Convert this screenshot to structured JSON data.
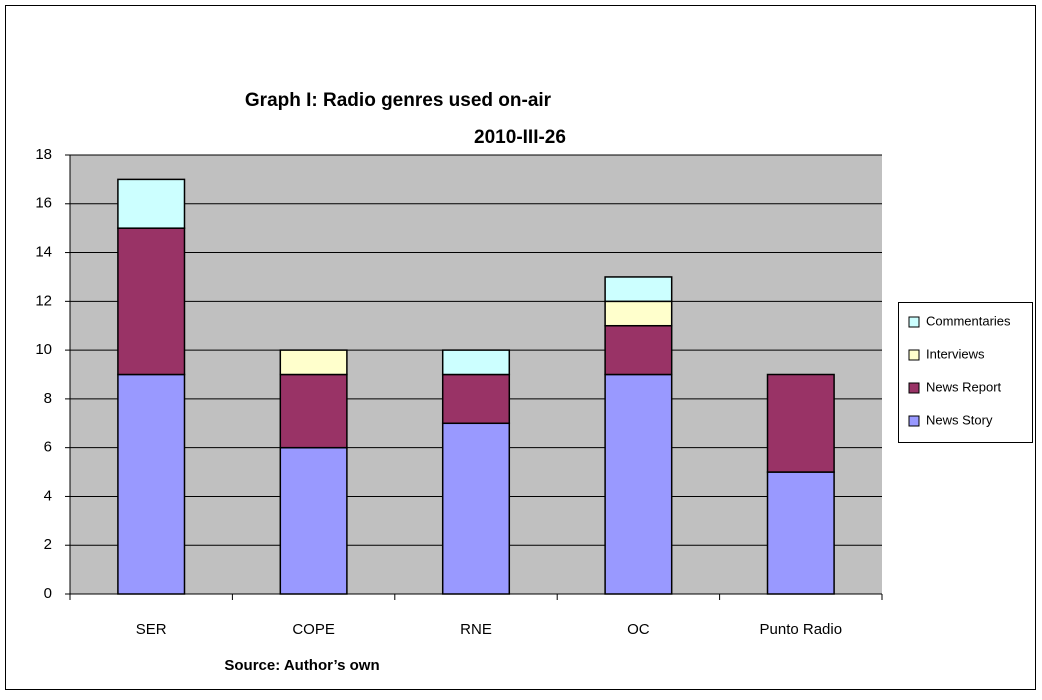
{
  "chart_data": {
    "type": "stacked-bar",
    "title": "Graph I: Radio genres used on-air",
    "subtitle": "2010-III-26",
    "source": "Source: Author’s own",
    "categories": [
      "SER",
      "COPE",
      "RNE",
      "OC",
      "Punto Radio"
    ],
    "series": [
      {
        "name": "News Story",
        "color": "#9999ff",
        "values": [
          9,
          6,
          7,
          9,
          5
        ]
      },
      {
        "name": "News Report",
        "color": "#993366",
        "values": [
          6,
          3,
          2,
          2,
          4
        ]
      },
      {
        "name": "Interviews",
        "color": "#ffffcc",
        "values": [
          0,
          1,
          0,
          1,
          0
        ]
      },
      {
        "name": "Commentaries",
        "color": "#ccffff",
        "values": [
          2,
          0,
          1,
          1,
          0
        ]
      }
    ],
    "ylim": [
      0,
      18
    ],
    "yticks": [
      0,
      2,
      4,
      6,
      8,
      10,
      12,
      14,
      16,
      18
    ],
    "grid": true,
    "legend": "right"
  }
}
